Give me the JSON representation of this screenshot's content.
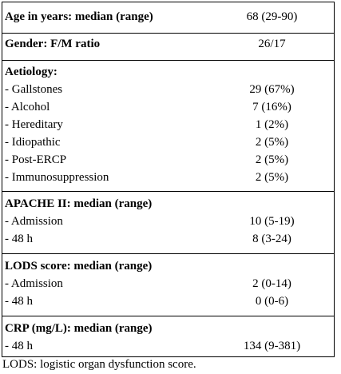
{
  "table": {
    "age": {
      "label": "Age in years: median (range)",
      "value": "68 (29-90)"
    },
    "gender": {
      "label": "Gender: F/M ratio",
      "value": "26/17"
    },
    "aetiology": {
      "label": "Aetiology:",
      "items": [
        {
          "label": "- Gallstones",
          "value": "29 (67%)"
        },
        {
          "label": "- Alcohol",
          "value": "7 (16%)"
        },
        {
          "label": "- Hereditary",
          "value": "1 (2%)"
        },
        {
          "label": "- Idiopathic",
          "value": "2 (5%)"
        },
        {
          "label": "- Post-ERCP",
          "value": "2 (5%)"
        },
        {
          "label": "- Immunosuppression",
          "value": "2 (5%)"
        }
      ]
    },
    "apache": {
      "label": "APACHE II: median (range)",
      "items": [
        {
          "label": "- Admission",
          "value": "10 (5-19)"
        },
        {
          "label": "- 48 h",
          "value": "8 (3-24)"
        }
      ]
    },
    "lods": {
      "label": "LODS score: median (range)",
      "items": [
        {
          "label": "- Admission",
          "value": "2 (0-14)"
        },
        {
          "label": "- 48 h",
          "value": "0 (0-6)"
        }
      ]
    },
    "crp": {
      "label": "CRP (mg/L): median (range)",
      "items": [
        {
          "label": "- 48 h",
          "value": "134 (9-381)"
        }
      ]
    }
  },
  "footnote": "LODS: logistic organ dysfunction score."
}
